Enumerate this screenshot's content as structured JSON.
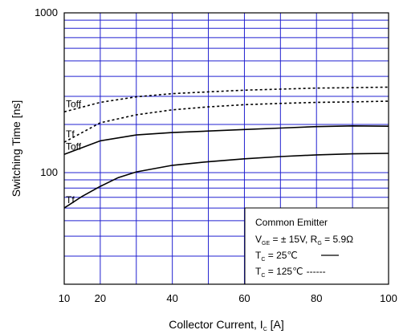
{
  "chart_data": {
    "type": "line",
    "xlabel": "Collector Current, I",
    "xlabel_sub": "C",
    "xlabel_unit": " [A]",
    "ylabel": "Switching Time [ns]",
    "xlim": [
      10,
      100
    ],
    "ylim": [
      20,
      1000
    ],
    "yscale": "log",
    "x_ticks": [
      10,
      20,
      40,
      60,
      80,
      100
    ],
    "y_tick_labels": [
      {
        "value": 100,
        "label": "100"
      },
      {
        "value": 1000,
        "label": "1000"
      }
    ],
    "grid": true,
    "series": [
      {
        "name": "Toff",
        "condition": "125",
        "style": "dashed",
        "x": [
          10,
          20,
          30,
          40,
          50,
          60,
          70,
          80,
          90,
          100
        ],
        "y": [
          240,
          275,
          298,
          312,
          320,
          328,
          333,
          338,
          340,
          343
        ]
      },
      {
        "name": "Tf",
        "condition": "125",
        "style": "dashed",
        "x": [
          10,
          20,
          30,
          40,
          50,
          60,
          70,
          80,
          90,
          100
        ],
        "y": [
          155,
          205,
          230,
          247,
          258,
          266,
          271,
          275,
          277,
          280
        ]
      },
      {
        "name": "Toff",
        "condition": "25",
        "style": "solid",
        "x": [
          10,
          20,
          30,
          40,
          50,
          60,
          70,
          80,
          90,
          100
        ],
        "y": [
          130,
          158,
          172,
          178,
          182,
          186,
          190,
          194,
          196,
          195
        ]
      },
      {
        "name": "Tf",
        "condition": "25",
        "style": "solid",
        "x": [
          10,
          15,
          20,
          25,
          30,
          40,
          50,
          60,
          70,
          80,
          90,
          100
        ],
        "y": [
          60,
          71,
          82,
          93,
          101,
          111,
          117,
          122,
          126,
          129,
          131,
          132
        ]
      }
    ],
    "legend": {
      "position": "bottom-right",
      "title": "Common Emitter",
      "line1_v": "V",
      "line1_v_sub": "GE",
      "line1_mid": " = ±  15V, R",
      "line1_r_sub": "G",
      "line1_end": " = 5.9Ω",
      "line2_t": "T",
      "line2_t_sub": "C",
      "line2_end": " =   25℃",
      "line3_t": "T",
      "line3_t_sub": "C",
      "line3_end": " = 125℃",
      "line3_dashes": "------"
    }
  }
}
